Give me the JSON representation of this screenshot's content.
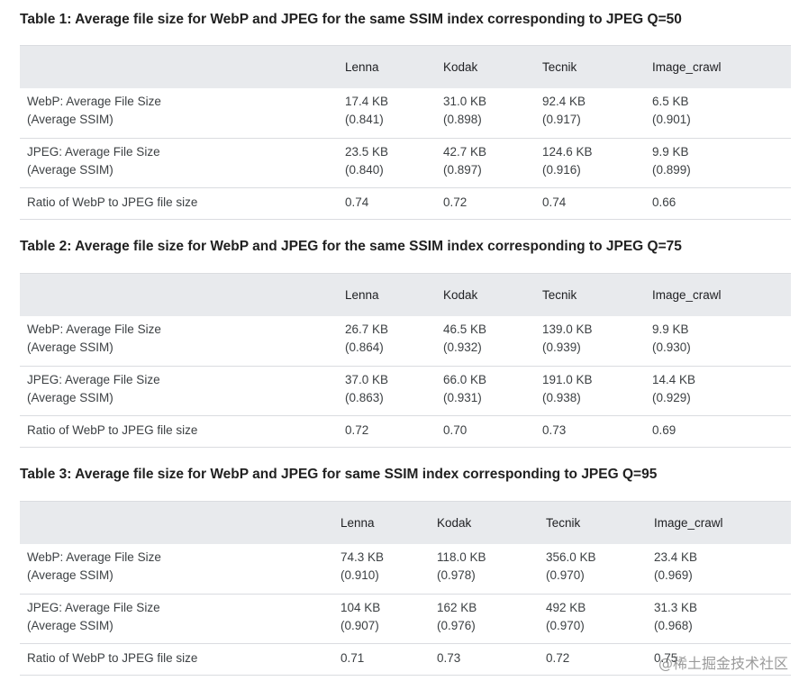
{
  "tables": [
    {
      "title": "Table 1: Average file size for WebP and JPEG for the same SSIM index corresponding to JPEG Q=50",
      "headers": [
        "",
        "Lenna",
        "Kodak",
        "Tecnik",
        "Image_crawl"
      ],
      "rows": [
        {
          "label": [
            "WebP: Average File Size",
            "(Average SSIM)"
          ],
          "cells": [
            [
              "17.4 KB",
              "(0.841)"
            ],
            [
              "31.0 KB",
              "(0.898)"
            ],
            [
              "92.4 KB",
              "(0.917)"
            ],
            [
              "6.5 KB",
              "(0.901)"
            ]
          ]
        },
        {
          "label": [
            "JPEG: Average File Size",
            "(Average SSIM)"
          ],
          "cells": [
            [
              "23.5 KB",
              "(0.840)"
            ],
            [
              "42.7 KB",
              "(0.897)"
            ],
            [
              "124.6 KB",
              "(0.916)"
            ],
            [
              "9.9 KB",
              "(0.899)"
            ]
          ]
        },
        {
          "label": [
            "Ratio of WebP to JPEG file size"
          ],
          "cells": [
            [
              "0.74"
            ],
            [
              "0.72"
            ],
            [
              "0.74"
            ],
            [
              "0.66"
            ]
          ]
        }
      ]
    },
    {
      "title": "Table 2: Average file size for WebP and JPEG for the same SSIM index corresponding to JPEG Q=75",
      "headers": [
        "",
        "Lenna",
        "Kodak",
        "Tecnik",
        "Image_crawl"
      ],
      "rows": [
        {
          "label": [
            "WebP: Average File Size",
            "(Average SSIM)"
          ],
          "cells": [
            [
              "26.7 KB",
              "(0.864)"
            ],
            [
              "46.5 KB",
              "(0.932)"
            ],
            [
              "139.0 KB",
              "(0.939)"
            ],
            [
              "9.9 KB",
              "(0.930)"
            ]
          ]
        },
        {
          "label": [
            "JPEG: Average File Size",
            "(Average SSIM)"
          ],
          "cells": [
            [
              "37.0 KB",
              "(0.863)"
            ],
            [
              "66.0 KB",
              "(0.931)"
            ],
            [
              "191.0 KB",
              "(0.938)"
            ],
            [
              "14.4 KB",
              "(0.929)"
            ]
          ]
        },
        {
          "label": [
            "Ratio of WebP to JPEG file size"
          ],
          "cells": [
            [
              "0.72"
            ],
            [
              "0.70"
            ],
            [
              "0.73"
            ],
            [
              "0.69"
            ]
          ]
        }
      ]
    },
    {
      "title": "Table 3: Average file size for WebP and JPEG for same SSIM index corresponding to JPEG Q=95",
      "headers": [
        "",
        "Lenna",
        "Kodak",
        "Tecnik",
        "Image_crawl"
      ],
      "rows": [
        {
          "label": [
            "WebP: Average File Size",
            "(Average SSIM)"
          ],
          "cells": [
            [
              "74.3 KB",
              "(0.910)"
            ],
            [
              "118.0 KB",
              "(0.978)"
            ],
            [
              "356.0 KB",
              "(0.970)"
            ],
            [
              "23.4 KB",
              "(0.969)"
            ]
          ]
        },
        {
          "label": [
            "JPEG: Average File Size",
            "(Average SSIM)"
          ],
          "cells": [
            [
              "104 KB",
              "(0.907)"
            ],
            [
              "162 KB",
              "(0.976)"
            ],
            [
              "492 KB",
              "(0.970)"
            ],
            [
              "31.3 KB",
              "(0.968)"
            ]
          ]
        },
        {
          "label": [
            "Ratio of WebP to JPEG file size"
          ],
          "cells": [
            [
              "0.71"
            ],
            [
              "0.73"
            ],
            [
              "0.72"
            ],
            [
              "0.75"
            ]
          ]
        }
      ]
    }
  ],
  "watermark": "@稀土掘金技术社区"
}
